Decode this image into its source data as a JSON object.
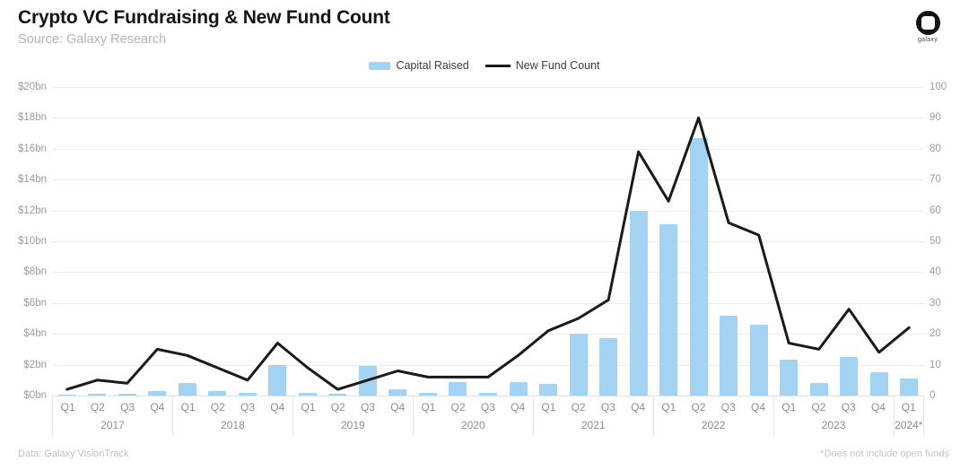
{
  "header": {
    "title": "Crypto VC Fundraising & New Fund Count",
    "subtitle": "Source: Galaxy Research",
    "logo_label": "galaxy"
  },
  "legend": {
    "bar_label": "Capital Raised",
    "line_label": "New Fund Count"
  },
  "footer": {
    "left": "Data: Galaxy VisionTrack",
    "right": "*Does not include open funds"
  },
  "colors": {
    "bar": "#a3d2f3",
    "line": "#1a1a1a",
    "grid": "#ececec",
    "axis_text": "#9b9b9b",
    "background": "#ffffff"
  },
  "chart_data": {
    "type": "bar+line combo",
    "title": "Crypto VC Fundraising & New Fund Count",
    "grid": true,
    "legend_position": "top-center",
    "left_axis": {
      "label": "Capital Raised",
      "unit": "$bn",
      "min": 0,
      "max": 20,
      "ticks": [
        "$20bn",
        "$18bn",
        "$16bn",
        "$14bn",
        "$12bn",
        "$10bn",
        "$8bn",
        "$6bn",
        "$4bn",
        "$2bn",
        "$0bn"
      ]
    },
    "right_axis": {
      "label": "New Fund Count",
      "min": 0,
      "max": 100,
      "ticks": [
        "100",
        "90",
        "80",
        "70",
        "60",
        "50",
        "40",
        "30",
        "20",
        "10",
        "0"
      ]
    },
    "years": [
      {
        "label": "2017",
        "quarters": [
          "Q1",
          "Q2",
          "Q3",
          "Q4"
        ]
      },
      {
        "label": "2018",
        "quarters": [
          "Q1",
          "Q2",
          "Q3",
          "Q4"
        ]
      },
      {
        "label": "2019",
        "quarters": [
          "Q1",
          "Q2",
          "Q3",
          "Q4"
        ]
      },
      {
        "label": "2020",
        "quarters": [
          "Q1",
          "Q2",
          "Q3",
          "Q4"
        ]
      },
      {
        "label": "2021",
        "quarters": [
          "Q1",
          "Q2",
          "Q3",
          "Q4"
        ]
      },
      {
        "label": "2022",
        "quarters": [
          "Q1",
          "Q2",
          "Q3",
          "Q4"
        ]
      },
      {
        "label": "2023",
        "quarters": [
          "Q1",
          "Q2",
          "Q3",
          "Q4"
        ]
      },
      {
        "label": "2024*",
        "quarters": [
          "Q1"
        ]
      }
    ],
    "x": [
      "2017 Q1",
      "2017 Q2",
      "2017 Q3",
      "2017 Q4",
      "2018 Q1",
      "2018 Q2",
      "2018 Q3",
      "2018 Q4",
      "2019 Q1",
      "2019 Q2",
      "2019 Q3",
      "2019 Q4",
      "2020 Q1",
      "2020 Q2",
      "2020 Q3",
      "2020 Q4",
      "2021 Q1",
      "2021 Q2",
      "2021 Q3",
      "2021 Q4",
      "2022 Q1",
      "2022 Q2",
      "2022 Q3",
      "2022 Q4",
      "2023 Q1",
      "2023 Q2",
      "2023 Q3",
      "2023 Q4",
      "2024 Q1"
    ],
    "series": [
      {
        "name": "Capital Raised",
        "type": "bar",
        "axis": "left",
        "unit": "$bn",
        "values": [
          0.05,
          0.1,
          0.1,
          0.3,
          0.8,
          0.3,
          0.15,
          2.0,
          0.2,
          0.1,
          1.9,
          0.4,
          0.2,
          0.9,
          0.15,
          0.85,
          0.75,
          4.0,
          3.7,
          12.0,
          11.1,
          16.7,
          5.2,
          4.6,
          2.3,
          0.8,
          2.5,
          1.5,
          1.1
        ]
      },
      {
        "name": "New Fund Count",
        "type": "line",
        "axis": "right",
        "values": [
          2,
          5,
          4,
          15,
          13,
          9,
          5,
          17,
          9,
          2,
          5,
          8,
          6,
          6,
          6,
          13,
          21,
          25,
          31,
          79,
          63,
          90,
          56,
          52,
          17,
          15,
          28,
          14,
          22
        ]
      }
    ]
  }
}
